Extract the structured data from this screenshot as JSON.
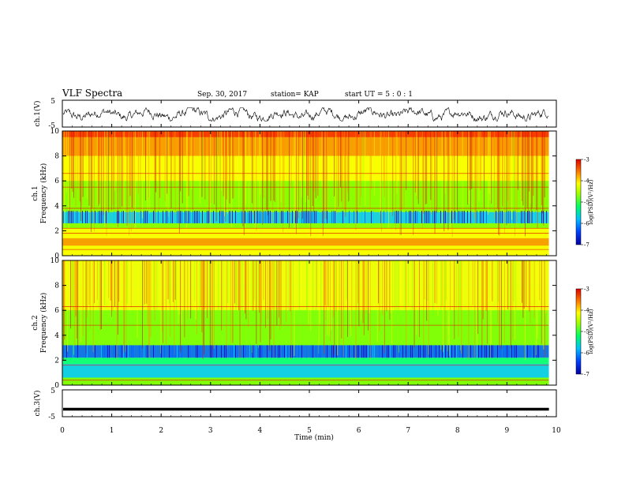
{
  "header": {
    "title": "VLF Spectra",
    "date": "Sep. 30, 2017",
    "station": "station= KAP",
    "start": "start UT =  5 : 0  : 1"
  },
  "colors": {
    "colormap": [
      "#0000c8",
      "#0060ff",
      "#00c8ff",
      "#00ff80",
      "#80ff00",
      "#ffff00",
      "#ff9000",
      "#ff2000",
      "#c80000"
    ],
    "waveform": "#000000"
  },
  "chart_data": [
    {
      "type": "line",
      "name": "ch1-waveform",
      "ylabel": "ch.1(V)",
      "ylim": [
        -5,
        5
      ],
      "yticks": [
        "5",
        "-5"
      ],
      "description_values": "noisy waveform oscillating roughly between -2 and +1.5 V around 0 V"
    },
    {
      "type": "heatmap",
      "name": "ch1-spectrogram",
      "ylabel": "ch.1\nFrequency (kHz)",
      "ylim": [
        0,
        10
      ],
      "yticks": [
        "0",
        "2",
        "4",
        "6",
        "8",
        "10"
      ],
      "colorbar": {
        "label": "log(PSD)(V²/Hz)",
        "range": [
          -7,
          -3
        ],
        "ticks": [
          "-3",
          "-4",
          "-5",
          "-6",
          "-7"
        ]
      },
      "horizontal_lines_khz": [
        0.5,
        1.8,
        2.2,
        3.8,
        5.5,
        6.6
      ]
    },
    {
      "type": "heatmap",
      "name": "ch2-spectrogram",
      "ylabel": "ch.2\nFrequency (kHz)",
      "ylim": [
        0,
        10
      ],
      "yticks": [
        "0",
        "2",
        "4",
        "6",
        "8",
        "10"
      ],
      "colorbar": {
        "label": "log(PSD)(V²/Hz)",
        "range": [
          -7,
          -3
        ],
        "ticks": [
          "-3",
          "-4",
          "-5",
          "-6",
          "-7"
        ]
      },
      "horizontal_lines_khz": [
        0.4,
        1.6,
        4.8,
        6.3
      ]
    },
    {
      "type": "line",
      "name": "ch3-waveform",
      "ylabel": "ch.3(V)",
      "ylim": [
        -5,
        5
      ],
      "yticks": [
        "5",
        "-5"
      ],
      "flat_value": -2.2
    }
  ],
  "xaxis": {
    "label": "Time (min)",
    "range": [
      0,
      10
    ],
    "ticks": [
      "0",
      "1",
      "2",
      "3",
      "4",
      "5",
      "6",
      "7",
      "8",
      "9",
      "10"
    ],
    "data_end": 9.85
  }
}
